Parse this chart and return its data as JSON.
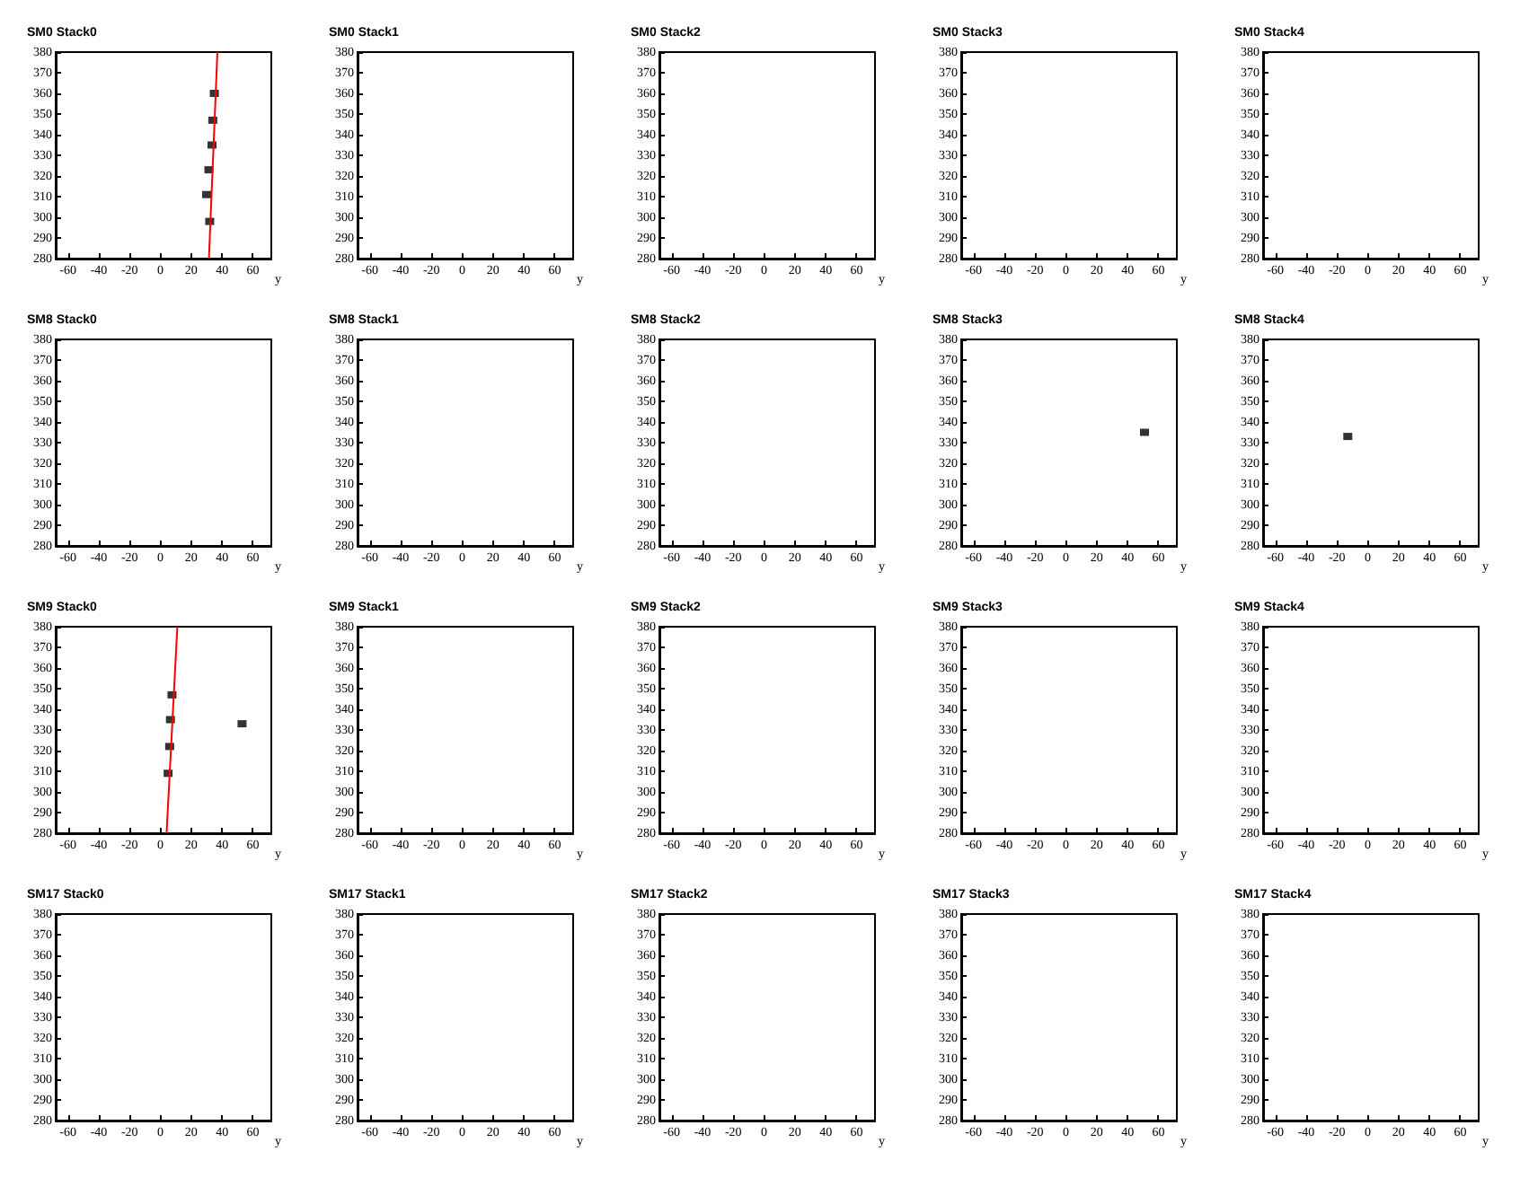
{
  "chart_data": [
    {
      "type": "scatter",
      "title": "SM0 Stack0",
      "xlabel": "y",
      "xlim": [
        -68,
        72
      ],
      "ylim": [
        280,
        380
      ],
      "xticks": [
        -60,
        -40,
        -20,
        0,
        20,
        40,
        60
      ],
      "yticks": [
        280,
        290,
        300,
        310,
        320,
        330,
        340,
        350,
        360,
        370,
        380
      ],
      "series": [
        {
          "color": "#000000",
          "marker": "square",
          "x": [
            35,
            34,
            33.5,
            31.5,
            30,
            32
          ],
          "values": [
            360,
            347,
            335,
            323,
            311,
            298
          ]
        },
        {
          "type": "line",
          "marker": "none",
          "color": "#ff0000",
          "x": [
            31.5,
            37
          ],
          "values": [
            280,
            380
          ]
        }
      ]
    },
    {
      "type": "scatter",
      "title": "SM0 Stack1",
      "xlabel": "y",
      "xlim": [
        -68,
        72
      ],
      "ylim": [
        280,
        380
      ],
      "xticks": [
        -60,
        -40,
        -20,
        0,
        20,
        40,
        60
      ],
      "yticks": [
        280,
        290,
        300,
        310,
        320,
        330,
        340,
        350,
        360,
        370,
        380
      ]
    },
    {
      "type": "scatter",
      "title": "SM0 Stack2",
      "xlabel": "y",
      "xlim": [
        -68,
        72
      ],
      "ylim": [
        280,
        380
      ],
      "xticks": [
        -60,
        -40,
        -20,
        0,
        20,
        40,
        60
      ],
      "yticks": [
        280,
        290,
        300,
        310,
        320,
        330,
        340,
        350,
        360,
        370,
        380
      ]
    },
    {
      "type": "scatter",
      "title": "SM0 Stack3",
      "xlabel": "y",
      "xlim": [
        -68,
        72
      ],
      "ylim": [
        280,
        380
      ],
      "xticks": [
        -60,
        -40,
        -20,
        0,
        20,
        40,
        60
      ],
      "yticks": [
        280,
        290,
        300,
        310,
        320,
        330,
        340,
        350,
        360,
        370,
        380
      ]
    },
    {
      "type": "scatter",
      "title": "SM0 Stack4",
      "xlabel": "y",
      "xlim": [
        -68,
        72
      ],
      "ylim": [
        280,
        380
      ],
      "xticks": [
        -60,
        -40,
        -20,
        0,
        20,
        40,
        60
      ],
      "yticks": [
        280,
        290,
        300,
        310,
        320,
        330,
        340,
        350,
        360,
        370,
        380
      ]
    },
    {
      "type": "scatter",
      "title": "SM8 Stack0",
      "xlabel": "y",
      "xlim": [
        -68,
        72
      ],
      "ylim": [
        280,
        380
      ],
      "xticks": [
        -60,
        -40,
        -20,
        0,
        20,
        40,
        60
      ],
      "yticks": [
        280,
        290,
        300,
        310,
        320,
        330,
        340,
        350,
        360,
        370,
        380
      ]
    },
    {
      "type": "scatter",
      "title": "SM8 Stack1",
      "xlabel": "y",
      "xlim": [
        -68,
        72
      ],
      "ylim": [
        280,
        380
      ],
      "xticks": [
        -60,
        -40,
        -20,
        0,
        20,
        40,
        60
      ],
      "yticks": [
        280,
        290,
        300,
        310,
        320,
        330,
        340,
        350,
        360,
        370,
        380
      ]
    },
    {
      "type": "scatter",
      "title": "SM8 Stack2",
      "xlabel": "y",
      "xlim": [
        -68,
        72
      ],
      "ylim": [
        280,
        380
      ],
      "xticks": [
        -60,
        -40,
        -20,
        0,
        20,
        40,
        60
      ],
      "yticks": [
        280,
        290,
        300,
        310,
        320,
        330,
        340,
        350,
        360,
        370,
        380
      ]
    },
    {
      "type": "scatter",
      "title": "SM8 Stack3",
      "xlabel": "y",
      "xlim": [
        -68,
        72
      ],
      "ylim": [
        280,
        380
      ],
      "xticks": [
        -60,
        -40,
        -20,
        0,
        20,
        40,
        60
      ],
      "yticks": [
        280,
        290,
        300,
        310,
        320,
        330,
        340,
        350,
        360,
        370,
        380
      ],
      "marker": "square",
      "series": [
        {
          "color": "#000000",
          "x": [
            51
          ],
          "values": [
            335
          ]
        }
      ]
    },
    {
      "type": "scatter",
      "title": "SM8 Stack4",
      "xlabel": "y",
      "xlim": [
        -68,
        72
      ],
      "ylim": [
        280,
        380
      ],
      "xticks": [
        -60,
        -40,
        -20,
        0,
        20,
        40,
        60
      ],
      "yticks": [
        280,
        290,
        300,
        310,
        320,
        330,
        340,
        350,
        360,
        370,
        380
      ],
      "marker": "square",
      "series": [
        {
          "color": "#000000",
          "x": [
            -13
          ],
          "values": [
            333
          ]
        }
      ]
    },
    {
      "type": "scatter",
      "title": "SM9 Stack0",
      "xlabel": "y",
      "xlim": [
        -68,
        72
      ],
      "ylim": [
        280,
        380
      ],
      "xticks": [
        -60,
        -40,
        -20,
        0,
        20,
        40,
        60
      ],
      "yticks": [
        280,
        290,
        300,
        310,
        320,
        330,
        340,
        350,
        360,
        370,
        380
      ],
      "series": [
        {
          "color": "#000000",
          "marker": "square",
          "x": [
            7.5,
            6.5,
            6,
            5,
            53
          ],
          "values": [
            347,
            335,
            322,
            309,
            333
          ]
        },
        {
          "type": "line",
          "marker": "none",
          "color": "#ff0000",
          "x": [
            4,
            11
          ],
          "values": [
            280,
            380
          ]
        }
      ]
    },
    {
      "type": "scatter",
      "title": "SM9 Stack1",
      "xlabel": "y",
      "xlim": [
        -68,
        72
      ],
      "ylim": [
        280,
        380
      ],
      "xticks": [
        -60,
        -40,
        -20,
        0,
        20,
        40,
        60
      ],
      "yticks": [
        280,
        290,
        300,
        310,
        320,
        330,
        340,
        350,
        360,
        370,
        380
      ]
    },
    {
      "type": "scatter",
      "title": "SM9 Stack2",
      "xlabel": "y",
      "xlim": [
        -68,
        72
      ],
      "ylim": [
        280,
        380
      ],
      "xticks": [
        -60,
        -40,
        -20,
        0,
        20,
        40,
        60
      ],
      "yticks": [
        280,
        290,
        300,
        310,
        320,
        330,
        340,
        350,
        360,
        370,
        380
      ]
    },
    {
      "type": "scatter",
      "title": "SM9 Stack3",
      "xlabel": "y",
      "xlim": [
        -68,
        72
      ],
      "ylim": [
        280,
        380
      ],
      "xticks": [
        -60,
        -40,
        -20,
        0,
        20,
        40,
        60
      ],
      "yticks": [
        280,
        290,
        300,
        310,
        320,
        330,
        340,
        350,
        360,
        370,
        380
      ]
    },
    {
      "type": "scatter",
      "title": "SM9 Stack4",
      "xlabel": "y",
      "xlim": [
        -68,
        72
      ],
      "ylim": [
        280,
        380
      ],
      "xticks": [
        -60,
        -40,
        -20,
        0,
        20,
        40,
        60
      ],
      "yticks": [
        280,
        290,
        300,
        310,
        320,
        330,
        340,
        350,
        360,
        370,
        380
      ]
    },
    {
      "type": "scatter",
      "title": "SM17 Stack0",
      "xlabel": "y",
      "xlim": [
        -68,
        72
      ],
      "ylim": [
        280,
        380
      ],
      "xticks": [
        -60,
        -40,
        -20,
        0,
        20,
        40,
        60
      ],
      "yticks": [
        280,
        290,
        300,
        310,
        320,
        330,
        340,
        350,
        360,
        370,
        380
      ]
    },
    {
      "type": "scatter",
      "title": "SM17 Stack1",
      "xlabel": "y",
      "xlim": [
        -68,
        72
      ],
      "ylim": [
        280,
        380
      ],
      "xticks": [
        -60,
        -40,
        -20,
        0,
        20,
        40,
        60
      ],
      "yticks": [
        280,
        290,
        300,
        310,
        320,
        330,
        340,
        350,
        360,
        370,
        380
      ]
    },
    {
      "type": "scatter",
      "title": "SM17 Stack2",
      "xlabel": "y",
      "xlim": [
        -68,
        72
      ],
      "ylim": [
        280,
        380
      ],
      "xticks": [
        -60,
        -40,
        -20,
        0,
        20,
        40,
        60
      ],
      "yticks": [
        280,
        290,
        300,
        310,
        320,
        330,
        340,
        350,
        360,
        370,
        380
      ]
    },
    {
      "type": "scatter",
      "title": "SM17 Stack3",
      "xlabel": "y",
      "xlim": [
        -68,
        72
      ],
      "ylim": [
        280,
        380
      ],
      "xticks": [
        -60,
        -40,
        -20,
        0,
        20,
        40,
        60
      ],
      "yticks": [
        280,
        290,
        300,
        310,
        320,
        330,
        340,
        350,
        360,
        370,
        380
      ]
    },
    {
      "type": "scatter",
      "title": "SM17 Stack4",
      "xlabel": "y",
      "xlim": [
        -68,
        72
      ],
      "ylim": [
        280,
        380
      ],
      "xticks": [
        -60,
        -40,
        -20,
        0,
        20,
        40,
        60
      ],
      "yticks": [
        280,
        290,
        300,
        310,
        320,
        330,
        340,
        350,
        360,
        370,
        380
      ]
    }
  ]
}
